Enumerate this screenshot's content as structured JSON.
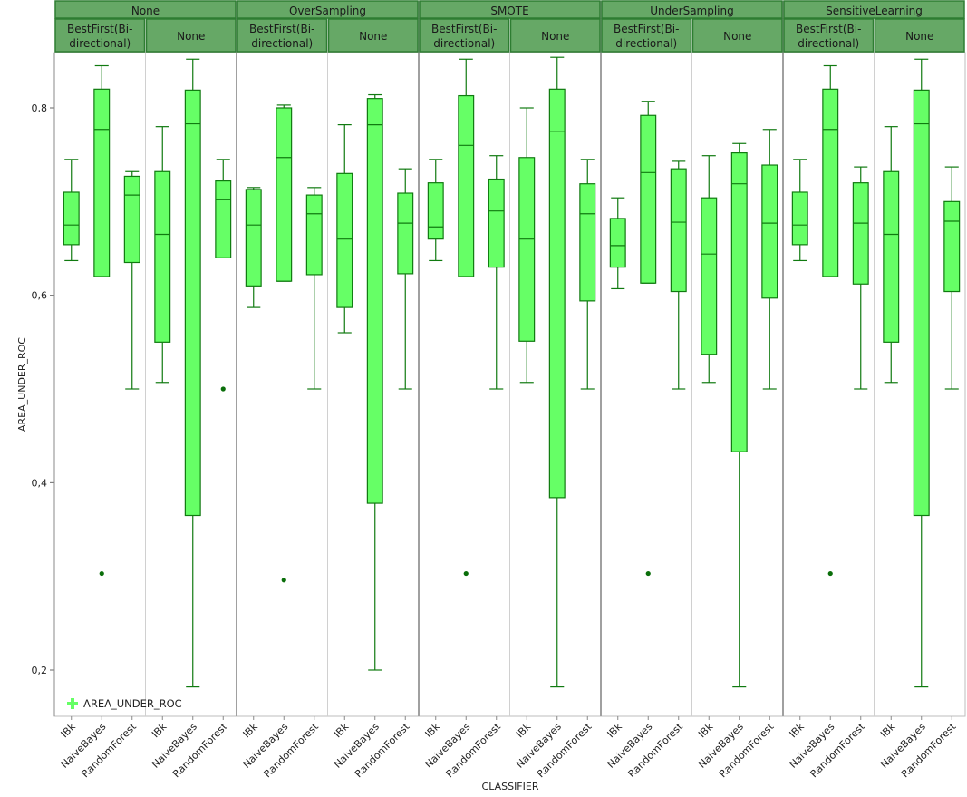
{
  "chart_data": {
    "type": "boxplot",
    "ylabel": "AREA_UNDER_ROC",
    "xlabel": "CLASSIFIER",
    "ylim": [
      0.15,
      0.86
    ],
    "yticks": [
      0.2,
      0.4,
      0.6,
      0.8
    ],
    "ytick_labels": [
      "0,2",
      "0,4",
      "0,6",
      "0,8"
    ],
    "legend": {
      "label": "AREA_UNDER_ROC",
      "position": "bottom-left"
    },
    "colors": {
      "box_fill": "#66ff66",
      "box_stroke": "#107a10",
      "header_fill": "#66a866",
      "header_stroke": "#2e7d32",
      "outlier": "#0a6e0a"
    },
    "groups": [
      {
        "name": "None",
        "subgroups": [
          {
            "name": "BestFirst(Bi-directional)",
            "boxes": [
              {
                "classifier": "IBk",
                "min": 0.637,
                "q1": 0.654,
                "median": 0.675,
                "q3": 0.71,
                "max": 0.745,
                "outliers": []
              },
              {
                "classifier": "NaiveBayes",
                "min": 0.62,
                "q1": 0.62,
                "median": 0.777,
                "q3": 0.82,
                "max": 0.845,
                "outliers": [
                  0.303
                ]
              },
              {
                "classifier": "RandomForest",
                "min": 0.5,
                "q1": 0.635,
                "median": 0.707,
                "q3": 0.727,
                "max": 0.732,
                "outliers": []
              }
            ]
          },
          {
            "name": "None",
            "boxes": [
              {
                "classifier": "IBk",
                "min": 0.507,
                "q1": 0.55,
                "median": 0.665,
                "q3": 0.732,
                "max": 0.78,
                "outliers": []
              },
              {
                "classifier": "NaiveBayes",
                "min": 0.182,
                "q1": 0.365,
                "median": 0.783,
                "q3": 0.819,
                "max": 0.852,
                "outliers": []
              },
              {
                "classifier": "RandomForest",
                "min": 0.64,
                "q1": 0.64,
                "median": 0.702,
                "q3": 0.722,
                "max": 0.745,
                "outliers": [
                  0.5
                ]
              }
            ]
          }
        ]
      },
      {
        "name": "OverSampling",
        "subgroups": [
          {
            "name": "BestFirst(Bi-directional)",
            "boxes": [
              {
                "classifier": "IBk",
                "min": 0.587,
                "q1": 0.61,
                "median": 0.675,
                "q3": 0.713,
                "max": 0.715,
                "outliers": []
              },
              {
                "classifier": "NaiveBayes",
                "min": 0.615,
                "q1": 0.615,
                "median": 0.747,
                "q3": 0.8,
                "max": 0.803,
                "outliers": [
                  0.296
                ]
              },
              {
                "classifier": "RandomForest",
                "min": 0.5,
                "q1": 0.622,
                "median": 0.687,
                "q3": 0.707,
                "max": 0.715,
                "outliers": []
              }
            ]
          },
          {
            "name": "None",
            "boxes": [
              {
                "classifier": "IBk",
                "min": 0.56,
                "q1": 0.587,
                "median": 0.66,
                "q3": 0.73,
                "max": 0.782,
                "outliers": []
              },
              {
                "classifier": "NaiveBayes",
                "min": 0.2,
                "q1": 0.378,
                "median": 0.782,
                "q3": 0.81,
                "max": 0.814,
                "outliers": []
              },
              {
                "classifier": "RandomForest",
                "min": 0.5,
                "q1": 0.623,
                "median": 0.677,
                "q3": 0.709,
                "max": 0.735,
                "outliers": []
              }
            ]
          }
        ]
      },
      {
        "name": "SMOTE",
        "subgroups": [
          {
            "name": "BestFirst(Bi-directional)",
            "boxes": [
              {
                "classifier": "IBk",
                "min": 0.637,
                "q1": 0.66,
                "median": 0.673,
                "q3": 0.72,
                "max": 0.745,
                "outliers": []
              },
              {
                "classifier": "NaiveBayes",
                "min": 0.62,
                "q1": 0.62,
                "median": 0.76,
                "q3": 0.813,
                "max": 0.852,
                "outliers": [
                  0.303
                ]
              },
              {
                "classifier": "RandomForest",
                "min": 0.5,
                "q1": 0.63,
                "median": 0.69,
                "q3": 0.724,
                "max": 0.749,
                "outliers": []
              }
            ]
          },
          {
            "name": "None",
            "boxes": [
              {
                "classifier": "IBk",
                "min": 0.507,
                "q1": 0.551,
                "median": 0.66,
                "q3": 0.747,
                "max": 0.8,
                "outliers": []
              },
              {
                "classifier": "NaiveBayes",
                "min": 0.182,
                "q1": 0.384,
                "median": 0.775,
                "q3": 0.82,
                "max": 0.854,
                "outliers": []
              },
              {
                "classifier": "RandomForest",
                "min": 0.5,
                "q1": 0.594,
                "median": 0.687,
                "q3": 0.719,
                "max": 0.745,
                "outliers": []
              }
            ]
          }
        ]
      },
      {
        "name": "UnderSampling",
        "subgroups": [
          {
            "name": "BestFirst(Bi-directional)",
            "boxes": [
              {
                "classifier": "IBk",
                "min": 0.607,
                "q1": 0.63,
                "median": 0.653,
                "q3": 0.682,
                "max": 0.704,
                "outliers": []
              },
              {
                "classifier": "NaiveBayes",
                "min": 0.613,
                "q1": 0.613,
                "median": 0.731,
                "q3": 0.792,
                "max": 0.807,
                "outliers": [
                  0.303
                ]
              },
              {
                "classifier": "RandomForest",
                "min": 0.5,
                "q1": 0.604,
                "median": 0.678,
                "q3": 0.735,
                "max": 0.743,
                "outliers": []
              }
            ]
          },
          {
            "name": "None",
            "boxes": [
              {
                "classifier": "IBk",
                "min": 0.507,
                "q1": 0.537,
                "median": 0.644,
                "q3": 0.704,
                "max": 0.749,
                "outliers": []
              },
              {
                "classifier": "NaiveBayes",
                "min": 0.182,
                "q1": 0.433,
                "median": 0.719,
                "q3": 0.752,
                "max": 0.762,
                "outliers": []
              },
              {
                "classifier": "RandomForest",
                "min": 0.5,
                "q1": 0.597,
                "median": 0.677,
                "q3": 0.739,
                "max": 0.777,
                "outliers": []
              }
            ]
          }
        ]
      },
      {
        "name": "SensitiveLearning",
        "subgroups": [
          {
            "name": "BestFirst(Bi-directional)",
            "boxes": [
              {
                "classifier": "IBk",
                "min": 0.637,
                "q1": 0.654,
                "median": 0.675,
                "q3": 0.71,
                "max": 0.745,
                "outliers": []
              },
              {
                "classifier": "NaiveBayes",
                "min": 0.62,
                "q1": 0.62,
                "median": 0.777,
                "q3": 0.82,
                "max": 0.845,
                "outliers": [
                  0.303
                ]
              },
              {
                "classifier": "RandomForest",
                "min": 0.5,
                "q1": 0.612,
                "median": 0.677,
                "q3": 0.72,
                "max": 0.737,
                "outliers": []
              }
            ]
          },
          {
            "name": "None",
            "boxes": [
              {
                "classifier": "IBk",
                "min": 0.507,
                "q1": 0.55,
                "median": 0.665,
                "q3": 0.732,
                "max": 0.78,
                "outliers": []
              },
              {
                "classifier": "NaiveBayes",
                "min": 0.182,
                "q1": 0.365,
                "median": 0.783,
                "q3": 0.819,
                "max": 0.852,
                "outliers": []
              },
              {
                "classifier": "RandomForest",
                "min": 0.5,
                "q1": 0.604,
                "median": 0.679,
                "q3": 0.7,
                "max": 0.737,
                "outliers": []
              }
            ]
          }
        ]
      }
    ]
  }
}
